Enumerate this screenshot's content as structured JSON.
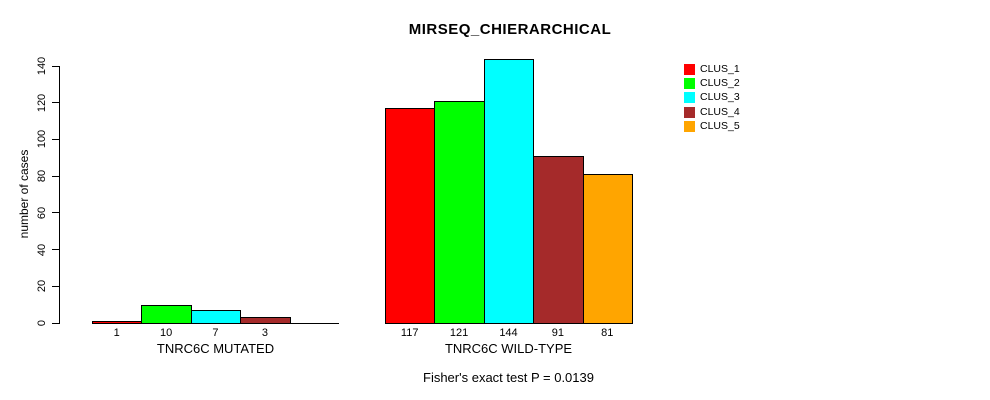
{
  "title": "MIRSEQ_CHIERARCHICAL",
  "footnote": "Fisher's exact test P = 0.0139",
  "y_axis": {
    "label": "number of cases",
    "ticks": [
      0,
      20,
      40,
      60,
      80,
      100,
      120,
      140
    ]
  },
  "legend": [
    {
      "label": "CLUS_1",
      "color": "#FF0000"
    },
    {
      "label": "CLUS_2",
      "color": "#00FF00"
    },
    {
      "label": "CLUS_3",
      "color": "#00FFFF"
    },
    {
      "label": "CLUS_4",
      "color": "#A52A2A"
    },
    {
      "label": "CLUS_5",
      "color": "#FFA500"
    }
  ],
  "chart_data": {
    "type": "bar",
    "title": "MIRSEQ_CHIERARCHICAL",
    "ylabel": "number of cases",
    "ylim": [
      0,
      140
    ],
    "grid": false,
    "legend_position": "right",
    "series_names": [
      "CLUS_1",
      "CLUS_2",
      "CLUS_3",
      "CLUS_4",
      "CLUS_5"
    ],
    "series_colors": [
      "#FF0000",
      "#00FF00",
      "#00FFFF",
      "#A52A2A",
      "#FFA500"
    ],
    "groups": [
      {
        "label": "TNRC6C MUTATED",
        "values": [
          1,
          10,
          7,
          3,
          0
        ],
        "bar_labels": [
          "1",
          "10",
          "7",
          "3",
          ""
        ]
      },
      {
        "label": "TNRC6C WILD-TYPE",
        "values": [
          117,
          121,
          144,
          91,
          81
        ],
        "bar_labels": [
          "117",
          "121",
          "144",
          "91",
          "81"
        ]
      }
    ],
    "annotation": "Fisher's exact test P = 0.0139"
  }
}
